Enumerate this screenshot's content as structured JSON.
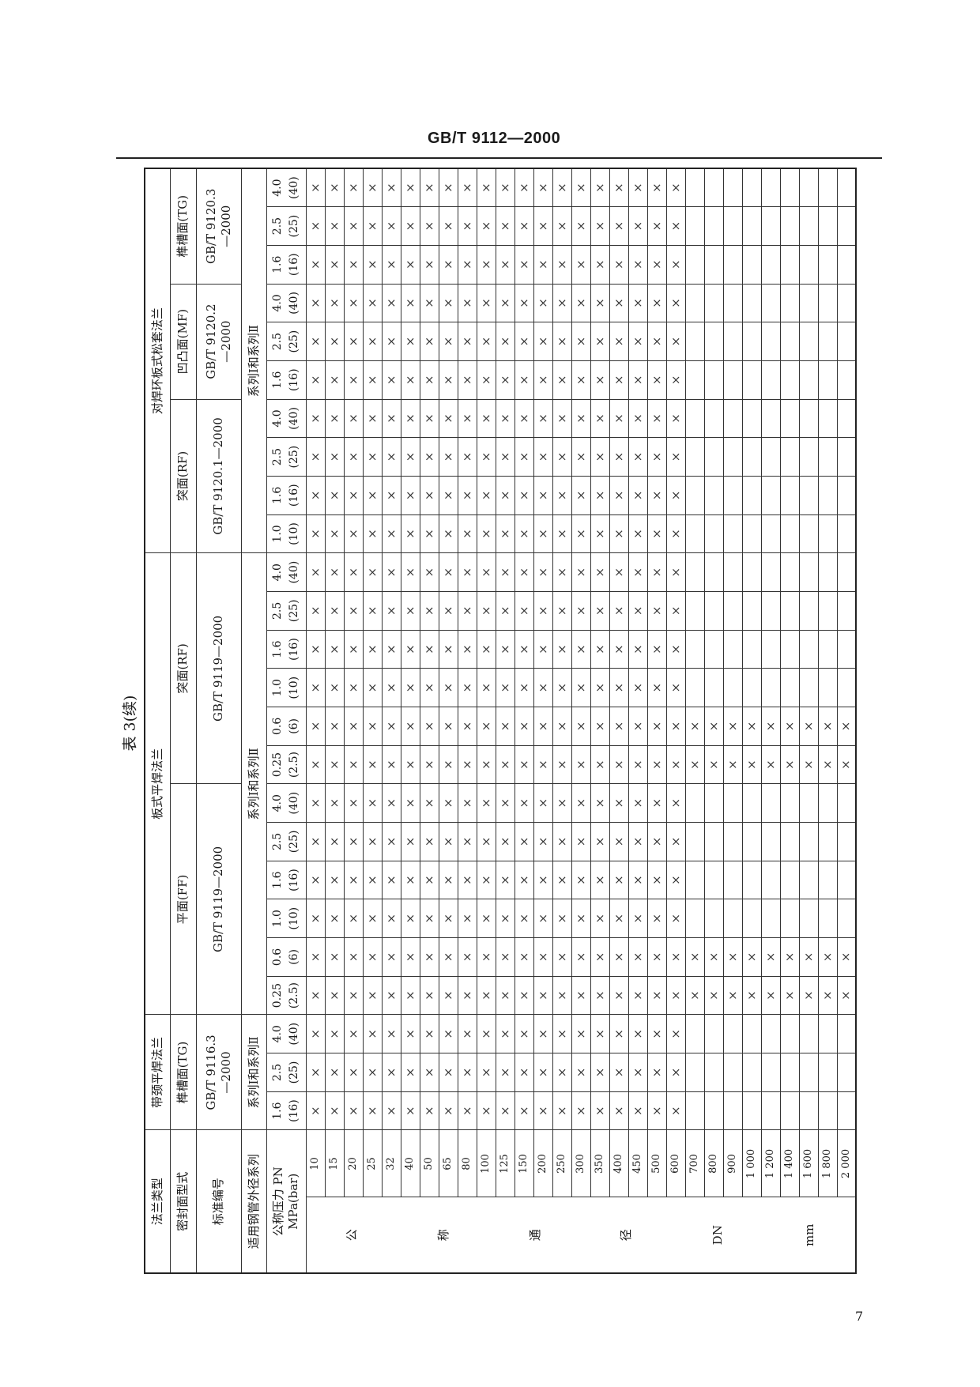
{
  "page_header": "GB/T 9112—2000",
  "table_title": "表 3(续)",
  "page_number": "7",
  "mark_symbol": "×",
  "row_labels": {
    "flange_type": "法兰类型",
    "seal_face": "密封面型式",
    "standard": "标准编号",
    "series": "适用钢管外径系列",
    "pressure": [
      "公称压力 PN",
      "MPa(bar)"
    ],
    "dn_label": [
      "公",
      "称",
      "通",
      "径",
      "DN",
      "mm"
    ]
  },
  "groups": [
    {
      "flange_type": "带颈平焊法兰",
      "series": "系列Ⅰ和系列Ⅱ",
      "faces": [
        {
          "name": "榫槽面(TG)",
          "standard": [
            "GB/T 9116.3",
            "—2000"
          ],
          "pressures": [
            {
              "mpa": "1.6",
              "bar": "(16)"
            },
            {
              "mpa": "2.5",
              "bar": "(25)"
            },
            {
              "mpa": "4.0",
              "bar": "(40)"
            }
          ]
        }
      ]
    },
    {
      "flange_type": "板式平焊法兰",
      "series": "系列Ⅰ和系列Ⅱ",
      "faces": [
        {
          "name": "平面(FF)",
          "standard": [
            "GB/T 9119—2000"
          ],
          "pressures": [
            {
              "mpa": "0.25",
              "bar": "(2.5)"
            },
            {
              "mpa": "0.6",
              "bar": "(6)"
            },
            {
              "mpa": "1.0",
              "bar": "(10)"
            },
            {
              "mpa": "1.6",
              "bar": "(16)"
            },
            {
              "mpa": "2.5",
              "bar": "(25)"
            },
            {
              "mpa": "4.0",
              "bar": "(40)"
            }
          ]
        },
        {
          "name": "突面(RF)",
          "standard": [
            "GB/T 9119—2000"
          ],
          "pressures": [
            {
              "mpa": "0.25",
              "bar": "(2.5)"
            },
            {
              "mpa": "0.6",
              "bar": "(6)"
            },
            {
              "mpa": "1.0",
              "bar": "(10)"
            },
            {
              "mpa": "1.6",
              "bar": "(16)"
            },
            {
              "mpa": "2.5",
              "bar": "(25)"
            },
            {
              "mpa": "4.0",
              "bar": "(40)"
            }
          ]
        }
      ]
    },
    {
      "flange_type": "对焊环板式松套法兰",
      "series": "系列Ⅰ和系列Ⅱ",
      "faces": [
        {
          "name": "突面(RF)",
          "standard": [
            "GB/T 9120.1—2000"
          ],
          "pressures": [
            {
              "mpa": "1.0",
              "bar": "(10)"
            },
            {
              "mpa": "1.6",
              "bar": "(16)"
            },
            {
              "mpa": "2.5",
              "bar": "(25)"
            },
            {
              "mpa": "4.0",
              "bar": "(40)"
            }
          ]
        },
        {
          "name": "凹凸面(MF)",
          "standard": [
            "GB/T 9120.2",
            "—2000"
          ],
          "pressures": [
            {
              "mpa": "1.6",
              "bar": "(16)"
            },
            {
              "mpa": "2.5",
              "bar": "(25)"
            },
            {
              "mpa": "4.0",
              "bar": "(40)"
            }
          ]
        },
        {
          "name": "榫槽面(TG)",
          "standard": [
            "GB/T 9120.3",
            "—2000"
          ],
          "pressures": [
            {
              "mpa": "1.6",
              "bar": "(16)"
            },
            {
              "mpa": "2.5",
              "bar": "(25)"
            },
            {
              "mpa": "4.0",
              "bar": "(40)"
            }
          ]
        }
      ]
    }
  ],
  "rows": [
    {
      "dn": "10",
      "cells": [
        "×",
        "×",
        "×",
        "×",
        "×",
        "×",
        "×",
        "×",
        "×",
        "×",
        "×",
        "×",
        "×",
        "×",
        "×",
        "×",
        "×",
        "×",
        "×",
        "×",
        "×",
        "×",
        "×",
        "×",
        "×"
      ]
    },
    {
      "dn": "15",
      "cells": [
        "×",
        "×",
        "×",
        "×",
        "×",
        "×",
        "×",
        "×",
        "×",
        "×",
        "×",
        "×",
        "×",
        "×",
        "×",
        "×",
        "×",
        "×",
        "×",
        "×",
        "×",
        "×",
        "×",
        "×",
        "×"
      ]
    },
    {
      "dn": "20",
      "cells": [
        "×",
        "×",
        "×",
        "×",
        "×",
        "×",
        "×",
        "×",
        "×",
        "×",
        "×",
        "×",
        "×",
        "×",
        "×",
        "×",
        "×",
        "×",
        "×",
        "×",
        "×",
        "×",
        "×",
        "×",
        "×"
      ]
    },
    {
      "dn": "25",
      "cells": [
        "×",
        "×",
        "×",
        "×",
        "×",
        "×",
        "×",
        "×",
        "×",
        "×",
        "×",
        "×",
        "×",
        "×",
        "×",
        "×",
        "×",
        "×",
        "×",
        "×",
        "×",
        "×",
        "×",
        "×",
        "×"
      ]
    },
    {
      "dn": "32",
      "cells": [
        "×",
        "×",
        "×",
        "×",
        "×",
        "×",
        "×",
        "×",
        "×",
        "×",
        "×",
        "×",
        "×",
        "×",
        "×",
        "×",
        "×",
        "×",
        "×",
        "×",
        "×",
        "×",
        "×",
        "×",
        "×"
      ]
    },
    {
      "dn": "40",
      "cells": [
        "×",
        "×",
        "×",
        "×",
        "×",
        "×",
        "×",
        "×",
        "×",
        "×",
        "×",
        "×",
        "×",
        "×",
        "×",
        "×",
        "×",
        "×",
        "×",
        "×",
        "×",
        "×",
        "×",
        "×",
        "×"
      ]
    },
    {
      "dn": "50",
      "cells": [
        "×",
        "×",
        "×",
        "×",
        "×",
        "×",
        "×",
        "×",
        "×",
        "×",
        "×",
        "×",
        "×",
        "×",
        "×",
        "×",
        "×",
        "×",
        "×",
        "×",
        "×",
        "×",
        "×",
        "×",
        "×"
      ]
    },
    {
      "dn": "65",
      "cells": [
        "×",
        "×",
        "×",
        "×",
        "×",
        "×",
        "×",
        "×",
        "×",
        "×",
        "×",
        "×",
        "×",
        "×",
        "×",
        "×",
        "×",
        "×",
        "×",
        "×",
        "×",
        "×",
        "×",
        "×",
        "×"
      ]
    },
    {
      "dn": "80",
      "cells": [
        "×",
        "×",
        "×",
        "×",
        "×",
        "×",
        "×",
        "×",
        "×",
        "×",
        "×",
        "×",
        "×",
        "×",
        "×",
        "×",
        "×",
        "×",
        "×",
        "×",
        "×",
        "×",
        "×",
        "×",
        "×"
      ]
    },
    {
      "dn": "100",
      "cells": [
        "×",
        "×",
        "×",
        "×",
        "×",
        "×",
        "×",
        "×",
        "×",
        "×",
        "×",
        "×",
        "×",
        "×",
        "×",
        "×",
        "×",
        "×",
        "×",
        "×",
        "×",
        "×",
        "×",
        "×",
        "×"
      ]
    },
    {
      "dn": "125",
      "cells": [
        "×",
        "×",
        "×",
        "×",
        "×",
        "×",
        "×",
        "×",
        "×",
        "×",
        "×",
        "×",
        "×",
        "×",
        "×",
        "×",
        "×",
        "×",
        "×",
        "×",
        "×",
        "×",
        "×",
        "×",
        "×"
      ]
    },
    {
      "dn": "150",
      "cells": [
        "×",
        "×",
        "×",
        "×",
        "×",
        "×",
        "×",
        "×",
        "×",
        "×",
        "×",
        "×",
        "×",
        "×",
        "×",
        "×",
        "×",
        "×",
        "×",
        "×",
        "×",
        "×",
        "×",
        "×",
        "×"
      ]
    },
    {
      "dn": "200",
      "cells": [
        "×",
        "×",
        "×",
        "×",
        "×",
        "×",
        "×",
        "×",
        "×",
        "×",
        "×",
        "×",
        "×",
        "×",
        "×",
        "×",
        "×",
        "×",
        "×",
        "×",
        "×",
        "×",
        "×",
        "×",
        "×"
      ]
    },
    {
      "dn": "250",
      "cells": [
        "×",
        "×",
        "×",
        "×",
        "×",
        "×",
        "×",
        "×",
        "×",
        "×",
        "×",
        "×",
        "×",
        "×",
        "×",
        "×",
        "×",
        "×",
        "×",
        "×",
        "×",
        "×",
        "×",
        "×",
        "×"
      ]
    },
    {
      "dn": "300",
      "cells": [
        "×",
        "×",
        "×",
        "×",
        "×",
        "×",
        "×",
        "×",
        "×",
        "×",
        "×",
        "×",
        "×",
        "×",
        "×",
        "×",
        "×",
        "×",
        "×",
        "×",
        "×",
        "×",
        "×",
        "×",
        "×"
      ]
    },
    {
      "dn": "350",
      "cells": [
        "×",
        "×",
        "×",
        "×",
        "×",
        "×",
        "×",
        "×",
        "×",
        "×",
        "×",
        "×",
        "×",
        "×",
        "×",
        "×",
        "×",
        "×",
        "×",
        "×",
        "×",
        "×",
        "×",
        "×",
        "×"
      ]
    },
    {
      "dn": "400",
      "cells": [
        "×",
        "×",
        "×",
        "×",
        "×",
        "×",
        "×",
        "×",
        "×",
        "×",
        "×",
        "×",
        "×",
        "×",
        "×",
        "×",
        "×",
        "×",
        "×",
        "×",
        "×",
        "×",
        "×",
        "×",
        "×"
      ]
    },
    {
      "dn": "450",
      "cells": [
        "×",
        "×",
        "×",
        "×",
        "×",
        "×",
        "×",
        "×",
        "×",
        "×",
        "×",
        "×",
        "×",
        "×",
        "×",
        "×",
        "×",
        "×",
        "×",
        "×",
        "×",
        "×",
        "×",
        "×",
        "×"
      ]
    },
    {
      "dn": "500",
      "cells": [
        "×",
        "×",
        "×",
        "×",
        "×",
        "×",
        "×",
        "×",
        "×",
        "×",
        "×",
        "×",
        "×",
        "×",
        "×",
        "×",
        "×",
        "×",
        "×",
        "×",
        "×",
        "×",
        "×",
        "×",
        "×"
      ]
    },
    {
      "dn": "600",
      "cells": [
        "×",
        "×",
        "×",
        "×",
        "×",
        "×",
        "×",
        "×",
        "×",
        "×",
        "×",
        "×",
        "×",
        "×",
        "×",
        "×",
        "×",
        "×",
        "×",
        "×",
        "×",
        "×",
        "×",
        "×",
        "×"
      ]
    },
    {
      "dn": "700",
      "cells": [
        "",
        "",
        "",
        "×",
        "×",
        "",
        "",
        "",
        "",
        "×",
        "×",
        "",
        "",
        "",
        "",
        "",
        "",
        "",
        "",
        "",
        "",
        "",
        "",
        "",
        ""
      ]
    },
    {
      "dn": "800",
      "cells": [
        "",
        "",
        "",
        "×",
        "×",
        "",
        "",
        "",
        "",
        "×",
        "×",
        "",
        "",
        "",
        "",
        "",
        "",
        "",
        "",
        "",
        "",
        "",
        "",
        "",
        ""
      ]
    },
    {
      "dn": "900",
      "cells": [
        "",
        "",
        "",
        "×",
        "×",
        "",
        "",
        "",
        "",
        "×",
        "×",
        "",
        "",
        "",
        "",
        "",
        "",
        "",
        "",
        "",
        "",
        "",
        "",
        "",
        ""
      ]
    },
    {
      "dn": "1 000",
      "cells": [
        "",
        "",
        "",
        "×",
        "×",
        "",
        "",
        "",
        "",
        "×",
        "×",
        "",
        "",
        "",
        "",
        "",
        "",
        "",
        "",
        "",
        "",
        "",
        "",
        "",
        ""
      ]
    },
    {
      "dn": "1 200",
      "cells": [
        "",
        "",
        "",
        "×",
        "×",
        "",
        "",
        "",
        "",
        "×",
        "×",
        "",
        "",
        "",
        "",
        "",
        "",
        "",
        "",
        "",
        "",
        "",
        "",
        "",
        ""
      ]
    },
    {
      "dn": "1 400",
      "cells": [
        "",
        "",
        "",
        "×",
        "×",
        "",
        "",
        "",
        "",
        "×",
        "×",
        "",
        "",
        "",
        "",
        "",
        "",
        "",
        "",
        "",
        "",
        "",
        "",
        "",
        ""
      ]
    },
    {
      "dn": "1 600",
      "cells": [
        "",
        "",
        "",
        "×",
        "×",
        "",
        "",
        "",
        "",
        "×",
        "×",
        "",
        "",
        "",
        "",
        "",
        "",
        "",
        "",
        "",
        "",
        "",
        "",
        "",
        ""
      ]
    },
    {
      "dn": "1 800",
      "cells": [
        "",
        "",
        "",
        "×",
        "×",
        "",
        "",
        "",
        "",
        "×",
        "×",
        "",
        "",
        "",
        "",
        "",
        "",
        "",
        "",
        "",
        "",
        "",
        "",
        "",
        ""
      ]
    },
    {
      "dn": "2 000",
      "cells": [
        "",
        "",
        "",
        "×",
        "×",
        "",
        "",
        "",
        "",
        "×",
        "×",
        "",
        "",
        "",
        "",
        "",
        "",
        "",
        "",
        "",
        "",
        "",
        "",
        "",
        ""
      ]
    }
  ]
}
